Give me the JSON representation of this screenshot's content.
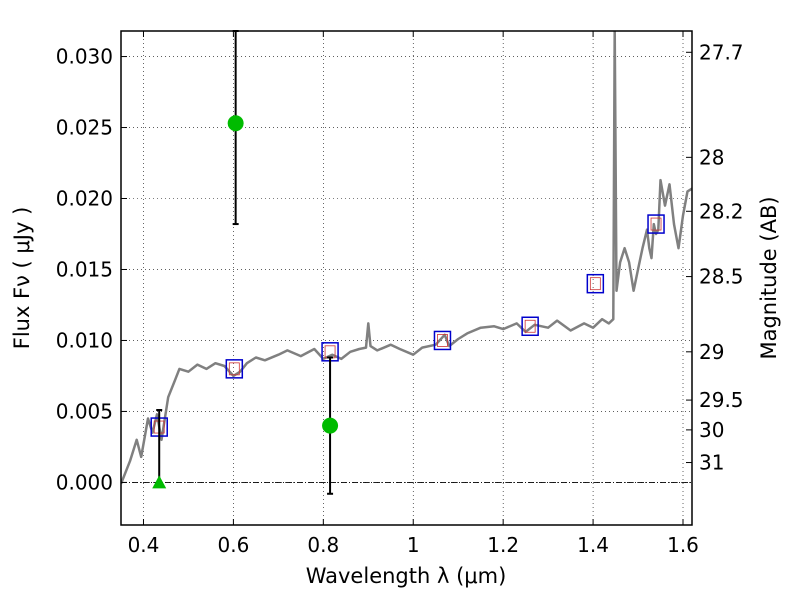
{
  "chart_data": {
    "type": "scatter",
    "xlabel": "Wavelength  λ (μm)",
    "ylabel": "Flux  Fν  ( μJy )",
    "y2label": "Magnitude (AB)",
    "xlim": [
      0.35,
      1.62
    ],
    "ylim": [
      -0.003,
      0.0318
    ],
    "x_ticks": [
      0.4,
      0.6,
      0.8,
      1.0,
      1.2,
      1.4,
      1.6
    ],
    "x_tick_labels": [
      "0.4",
      "0.6",
      "0.8",
      "1",
      "1.2",
      "1.4",
      "1.6"
    ],
    "y_ticks": [
      0.0,
      0.005,
      0.01,
      0.015,
      0.02,
      0.025,
      0.03
    ],
    "y_tick_labels": [
      "0.000",
      "0.005",
      "0.010",
      "0.015",
      "0.020",
      "0.025",
      "0.030"
    ],
    "mag_ticks": [
      {
        "label": "27.7",
        "flux": 0.0303
      },
      {
        "label": "28",
        "flux": 0.0229
      },
      {
        "label": "28.2",
        "flux": 0.0191
      },
      {
        "label": "28.5",
        "flux": 0.0145
      },
      {
        "label": "29",
        "flux": 0.0092
      },
      {
        "label": "29.5",
        "flux": 0.0058
      },
      {
        "label": "30",
        "flux": 0.0037
      },
      {
        "label": "31",
        "flux": 0.0014
      }
    ],
    "grid": true,
    "colors": {
      "template": "#808080",
      "model_box": "#0000cc",
      "model_inner": "#cc3333",
      "detection": "#00bb00",
      "errorbar": "#000000",
      "zero_line": "#000000"
    },
    "series": [
      {
        "kind": "line",
        "x": [
          0.35,
          0.37,
          0.385,
          0.395,
          0.41,
          0.42,
          0.43,
          0.44,
          0.455,
          0.47,
          0.48,
          0.5,
          0.52,
          0.54,
          0.56,
          0.58,
          0.6,
          0.615,
          0.63,
          0.65,
          0.67,
          0.7,
          0.72,
          0.75,
          0.78,
          0.8,
          0.82,
          0.84,
          0.86,
          0.88,
          0.895,
          0.9,
          0.905,
          0.92,
          0.95,
          0.97,
          1.0,
          1.02,
          1.05,
          1.07,
          1.08,
          1.1,
          1.12,
          1.15,
          1.18,
          1.2,
          1.23,
          1.25,
          1.27,
          1.3,
          1.32,
          1.35,
          1.38,
          1.4,
          1.42,
          1.435,
          1.445,
          1.448,
          1.452,
          1.46,
          1.47,
          1.48,
          1.49,
          1.5,
          1.51,
          1.52,
          1.525,
          1.53,
          1.535,
          1.54,
          1.545,
          1.55,
          1.56,
          1.57,
          1.58,
          1.59,
          1.6,
          1.61,
          1.62
        ],
        "y": [
          -0.0001,
          0.0015,
          0.003,
          0.0018,
          0.0045,
          0.0035,
          0.0048,
          0.003,
          0.006,
          0.0072,
          0.008,
          0.0078,
          0.0083,
          0.008,
          0.0084,
          0.0082,
          0.0075,
          0.0078,
          0.0084,
          0.0088,
          0.0086,
          0.009,
          0.0093,
          0.0089,
          0.0094,
          0.0087,
          0.009,
          0.0087,
          0.0092,
          0.0094,
          0.0095,
          0.0112,
          0.0096,
          0.0093,
          0.0097,
          0.0094,
          0.009,
          0.0095,
          0.0097,
          0.0104,
          0.0096,
          0.0101,
          0.0105,
          0.0109,
          0.011,
          0.0108,
          0.0112,
          0.0106,
          0.0111,
          0.0109,
          0.0114,
          0.0107,
          0.0112,
          0.0109,
          0.0115,
          0.0112,
          0.0115,
          0.032,
          0.0135,
          0.0155,
          0.0165,
          0.0155,
          0.0135,
          0.015,
          0.0165,
          0.0178,
          0.0165,
          0.0158,
          0.0182,
          0.0175,
          0.0178,
          0.0213,
          0.0195,
          0.021,
          0.0182,
          0.0165,
          0.0188,
          0.0205,
          0.0207
        ]
      },
      {
        "kind": "model_photometry",
        "x": [
          0.435,
          0.602,
          0.815,
          1.065,
          1.26,
          1.405,
          1.54
        ],
        "y": [
          0.0039,
          0.008,
          0.0092,
          0.01,
          0.011,
          0.014,
          0.0182
        ]
      },
      {
        "kind": "detections",
        "x": [
          0.605,
          0.815
        ],
        "y": [
          0.0253,
          0.004
        ],
        "err_low": [
          0.0182,
          -0.0008
        ],
        "err_high": [
          0.0318,
          0.0088
        ]
      },
      {
        "kind": "upper_limit",
        "x": [
          0.435
        ],
        "y": [
          0.0
        ],
        "err_low": [
          0.0
        ],
        "err_high": [
          0.0051
        ]
      }
    ]
  }
}
